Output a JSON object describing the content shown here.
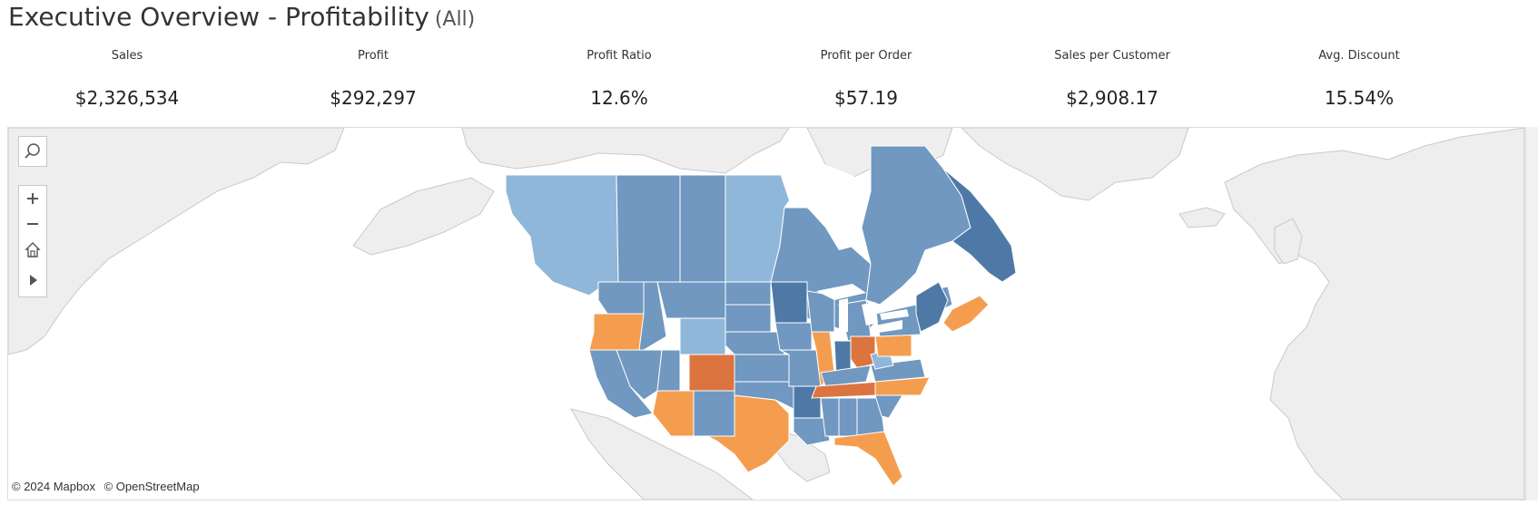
{
  "header": {
    "title": "Executive Overview - Profitability",
    "filter_label": "(All)"
  },
  "kpis": [
    {
      "label": "Sales",
      "value": "$2,326,534"
    },
    {
      "label": "Profit",
      "value": "$292,297"
    },
    {
      "label": "Profit Ratio",
      "value": "12.6%"
    },
    {
      "label": "Profit per Order",
      "value": "$57.19"
    },
    {
      "label": "Sales per Customer",
      "value": "$2,908.17"
    },
    {
      "label": "Avg. Discount",
      "value": "15.54%"
    }
  ],
  "map": {
    "attribution": [
      "© 2024 Mapbox",
      "© OpenStreetMap"
    ],
    "controls": [
      "search-icon",
      "zoom-in-icon",
      "zoom-out-icon",
      "home-icon",
      "play-icon"
    ],
    "colors": {
      "land": "#eeeeee",
      "water": "#ffffff",
      "profit_high": "#4e79a7",
      "profit_mid": "#7098c0",
      "profit_low": "#8fb7d9",
      "loss_light": "#f59d4f",
      "loss_dark": "#dc7440"
    }
  }
}
